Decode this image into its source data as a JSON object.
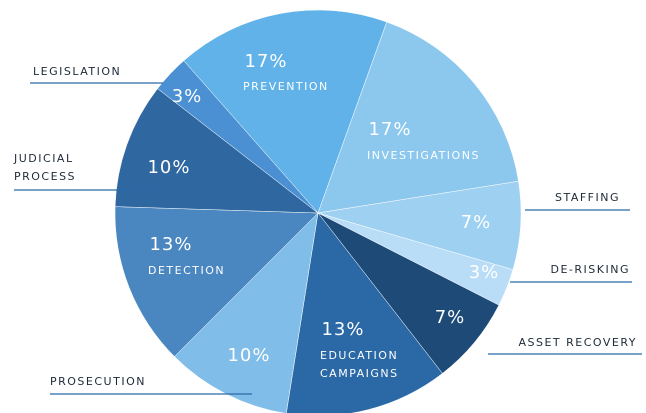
{
  "chart_data": {
    "type": "pie",
    "categories": [
      "PREVENTION",
      "INVESTIGATIONS",
      "STAFFING",
      "DE-RISKING",
      "ASSET RECOVERY",
      "EDUCATION CAMPAIGNS",
      "PROSECUTION",
      "DETECTION",
      "JUDICIAL PROCESS",
      "LEGISLATION"
    ],
    "values": [
      17,
      17,
      7,
      3,
      7,
      13,
      10,
      13,
      10,
      3
    ],
    "value_labels": [
      "17%",
      "17%",
      "7%",
      "3%",
      "7%",
      "13%",
      "10%",
      "13%",
      "10%",
      "3%"
    ],
    "colors": [
      "#60b2e8",
      "#8cc8ee",
      "#9ed0f1",
      "#b9ddf6",
      "#1d4a77",
      "#2b69a6",
      "#80bee9",
      "#4a86bf",
      "#2f67a0",
      "#4a90d2"
    ]
  }
}
